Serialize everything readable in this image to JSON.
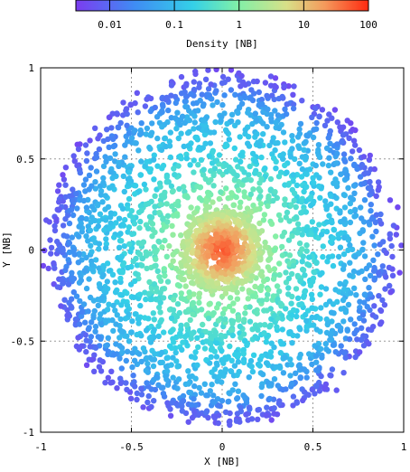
{
  "chart_data": {
    "type": "scatter",
    "subtype": "density-colored point cloud (disk of radius 1)",
    "title": "",
    "xlabel": "X [NB]",
    "ylabel": "Y [NB]",
    "xlim": [
      -1,
      1
    ],
    "ylim": [
      -1,
      1
    ],
    "xticks": [
      -1,
      -0.5,
      0,
      0.5,
      1
    ],
    "yticks": [
      -1,
      -0.5,
      0,
      0.5,
      1
    ],
    "xtick_labels": [
      "-1",
      "-0.5",
      "0",
      "0.5",
      "1"
    ],
    "ytick_labels": [
      "-1",
      "-0.5",
      "0",
      "0.5",
      "1"
    ],
    "grid": true,
    "colorbar": {
      "label": "Density [NB]",
      "scale": "log",
      "range": [
        0.003,
        100
      ],
      "ticks": [
        0.01,
        0.1,
        1,
        10,
        100
      ],
      "tick_labels": [
        "0.01",
        "0.1",
        "1",
        "10",
        "100"
      ],
      "colormap": "rainbow (purple to red)",
      "placement": "top"
    },
    "density_profile": [
      {
        "r": 0.0,
        "density": 60
      },
      {
        "r": 0.1,
        "density": 20
      },
      {
        "r": 0.2,
        "density": 3
      },
      {
        "r": 0.35,
        "density": 0.6
      },
      {
        "r": 0.55,
        "density": 0.2
      },
      {
        "r": 0.7,
        "density": 0.1
      },
      {
        "r": 0.8,
        "density": 0.05
      },
      {
        "r": 0.9,
        "density": 0.01
      },
      {
        "r": 1.0,
        "density": 0.005
      }
    ]
  },
  "colors": {
    "low": "#7b3cf0",
    "mid_low": "#2fb4f0",
    "mid": "#7ff0a8",
    "mid_high": "#f2c278",
    "high": "#ff2a10",
    "grid": "#9a9a9a"
  }
}
